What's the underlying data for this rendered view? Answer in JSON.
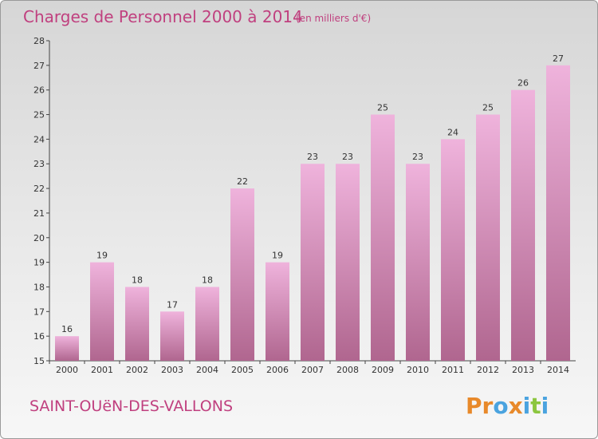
{
  "colors": {
    "bar_light": "#efb3dc",
    "bar_dark": "#b0668f",
    "title": "#c0407f",
    "logo": [
      "#e8892a",
      "#e8892a",
      "#4aa3df",
      "#e8892a",
      "#4aa3df",
      "#8cc63f",
      "#4aa3df",
      "#e8892a"
    ]
  },
  "commune": "SAINT-OUëN-DES-VALLONS",
  "logo_text": "Proxiti",
  "chart_data": {
    "type": "bar",
    "title": "Charges de Personnel 2000 à 2014",
    "subtitle": "(en milliers d'€)",
    "categories": [
      "2000",
      "2001",
      "2002",
      "2003",
      "2004",
      "2005",
      "2006",
      "2007",
      "2008",
      "2009",
      "2010",
      "2011",
      "2012",
      "2013",
      "2014"
    ],
    "values": [
      16,
      19,
      18,
      17,
      18,
      22,
      19,
      23,
      23,
      25,
      23,
      24,
      25,
      26,
      27
    ],
    "data_labels": [
      "16",
      "19",
      "18",
      "17",
      "18",
      "22",
      "19",
      "23",
      "23",
      "25",
      "23",
      "24",
      "25",
      "26",
      "27"
    ],
    "ylim": [
      15,
      28
    ],
    "yticks": [
      "15",
      "16",
      "17",
      "18",
      "19",
      "20",
      "21",
      "22",
      "23",
      "24",
      "25",
      "26",
      "27",
      "28"
    ],
    "xlabel": "",
    "ylabel": "",
    "grid": false,
    "legend": "none"
  }
}
